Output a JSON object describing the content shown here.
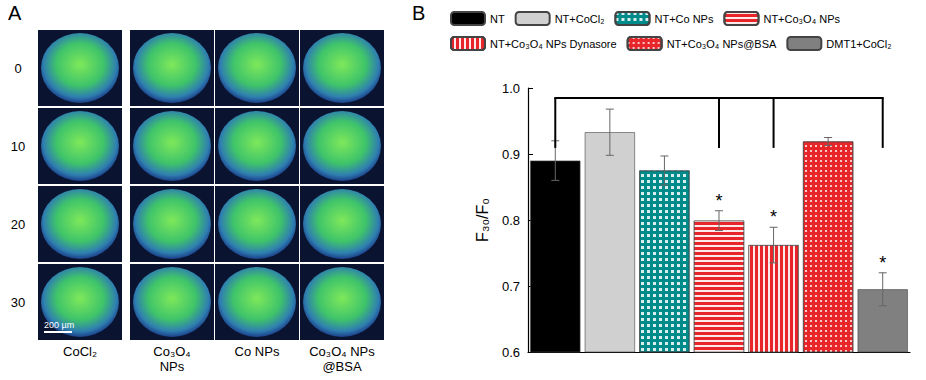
{
  "panel_a": {
    "label": "A",
    "rows": [
      "0",
      "10",
      "20",
      "30"
    ],
    "columns": [
      [
        "CoCl₂"
      ],
      [
        "Co₃O₄",
        "NPs"
      ],
      [
        "Co NPs"
      ],
      [
        "Co₃O₄ NPs",
        "@BSA"
      ]
    ],
    "scale_bar": "200 µm"
  },
  "panel_b": {
    "label": "B"
  },
  "chart_data": {
    "type": "bar",
    "y_label": "F₃₀/F₀",
    "categories": [
      null,
      null,
      null,
      null,
      null,
      null,
      null
    ],
    "series": [
      {
        "name": "NT",
        "color": "#000000",
        "values": [
          0.89,
          null,
          null,
          null,
          null,
          null,
          null
        ],
        "errors": [
          0.03,
          null,
          null,
          null,
          null,
          null,
          null
        ]
      },
      {
        "name": "NT+CoCl₂",
        "color": "#d0d0d0",
        "values": [
          null,
          0.933,
          null,
          null,
          null,
          null,
          null
        ],
        "errors": [
          null,
          0.035,
          null,
          null,
          null,
          null,
          null
        ]
      },
      {
        "name": "NT+Co NPs",
        "color": "#008b8b",
        "values": [
          null,
          null,
          0.875,
          null,
          null,
          null,
          null
        ],
        "errors": [
          null,
          null,
          0.022,
          null,
          null,
          null,
          null
        ]
      },
      {
        "name": "NT+Co₃O₄ NPs",
        "color": "#e8262a",
        "values": [
          null,
          null,
          null,
          0.799,
          null,
          null,
          null
        ],
        "errors": [
          null,
          null,
          null,
          0.015,
          null,
          null,
          null
        ]
      },
      {
        "name": "NT+Co₃O₄ NPs Dynasore",
        "color": "#e8262a",
        "values": [
          null,
          null,
          null,
          null,
          0.762,
          null,
          null
        ],
        "errors": [
          null,
          null,
          null,
          null,
          0.027,
          null,
          null
        ]
      },
      {
        "name": "NT+Co₃O₄ NPs@BSA",
        "color": "#e8262a",
        "values": [
          null,
          null,
          null,
          null,
          null,
          0.919,
          null
        ],
        "errors": [
          null,
          null,
          null,
          null,
          null,
          0.006,
          null
        ]
      },
      {
        "name": "DMT1+CoCl₂",
        "color": "#808080",
        "values": [
          null,
          null,
          null,
          null,
          null,
          null,
          0.695
        ],
        "errors": [
          null,
          null,
          null,
          null,
          null,
          null,
          0.025
        ]
      }
    ],
    "ylim": [
      0.6,
      1.0
    ],
    "yticks": [
      0.6,
      0.7,
      0.8,
      0.9,
      {
        "value": 1.0,
        "label": "1.0"
      }
    ],
    "grid": false,
    "legend": "top",
    "tick_labels": "y",
    "significance": {
      "reference": "NT",
      "compared": [
        "NT+Co₃O₄ NPs",
        "NT+Co₃O₄ NPs Dynasore",
        "DMT1+CoCl₂"
      ],
      "label": "*",
      "bracket_y": 0.985
    }
  }
}
